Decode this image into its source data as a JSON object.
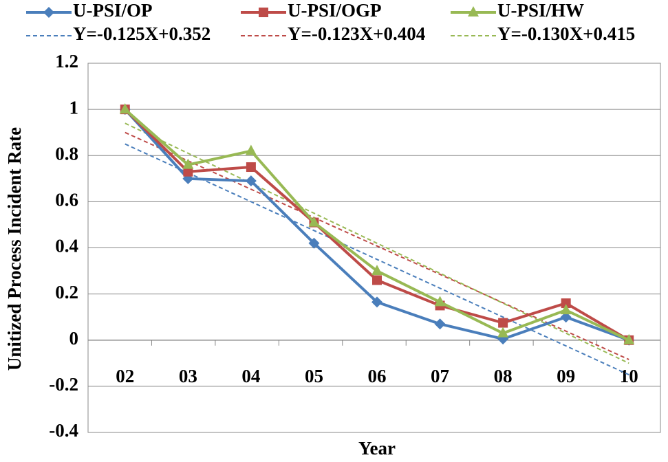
{
  "chart_data": {
    "type": "line",
    "x_label": "Year",
    "y_label": "Unitized Process Incident Rate",
    "categories": [
      "02",
      "03",
      "04",
      "05",
      "06",
      "07",
      "08",
      "09",
      "10"
    ],
    "series": [
      {
        "name": "U-PSI/OP",
        "color": "#4a7ebb",
        "marker": "diamond",
        "values": [
          1,
          0.7,
          0.69,
          0.42,
          0.165,
          0.07,
          0.005,
          0.1,
          0
        ]
      },
      {
        "name": "U-PSI/OGP",
        "color": "#be4b48",
        "marker": "square",
        "values": [
          1,
          0.73,
          0.75,
          0.51,
          0.26,
          0.15,
          0.075,
          0.16,
          0
        ]
      },
      {
        "name": "U-PSI/HW",
        "color": "#98b954",
        "marker": "triangle",
        "values": [
          1,
          0.76,
          0.82,
          0.51,
          0.3,
          0.165,
          0.03,
          0.13,
          0
        ]
      },
      {
        "name": "Y=-0.125X+0.352",
        "color": "#4a7ebb",
        "dashed": true,
        "values": [
          0.85,
          0.725,
          0.6,
          0.475,
          0.35,
          0.225,
          0.1,
          -0.025,
          -0.15
        ]
      },
      {
        "name": "Y=-0.123X+0.404",
        "color": "#be4b48",
        "dashed": true,
        "values": [
          0.9,
          0.777,
          0.654,
          0.531,
          0.408,
          0.285,
          0.162,
          0.039,
          -0.084
        ]
      },
      {
        "name": "Y=-0.130X+0.415",
        "color": "#98b954",
        "dashed": true,
        "values": [
          0.94,
          0.81,
          0.68,
          0.55,
          0.42,
          0.29,
          0.16,
          0.03,
          -0.1
        ]
      }
    ],
    "ylim": [
      -0.4,
      1.2
    ],
    "yticks": [
      -0.4,
      -0.2,
      0,
      0.2,
      0.4,
      0.6,
      0.8,
      1,
      1.2
    ],
    "grid": true
  }
}
